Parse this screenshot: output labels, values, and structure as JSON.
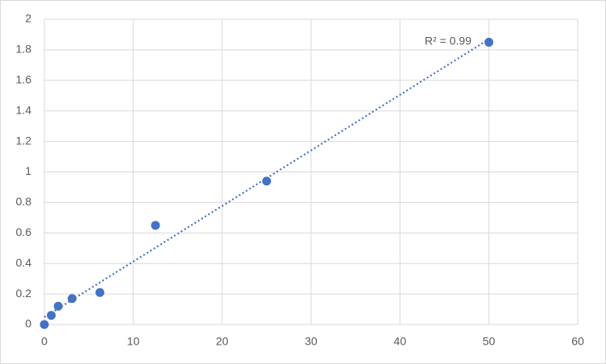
{
  "chart_data": {
    "type": "scatter",
    "x": [
      0,
      0.78,
      1.56,
      3.125,
      6.25,
      12.5,
      25,
      50
    ],
    "values": [
      0,
      0.06,
      0.12,
      0.17,
      0.21,
      0.65,
      0.94,
      1.85
    ],
    "color": "#4472c4",
    "trendline": "linear",
    "annotation": "R² = 0.99",
    "xlim": [
      0,
      60
    ],
    "xticks": [
      0,
      10,
      20,
      30,
      40,
      50,
      60
    ],
    "ylim": [
      0,
      2
    ],
    "yticks": [
      0,
      0.2,
      0.4,
      0.6,
      0.8,
      1,
      1.2,
      1.4,
      1.6,
      1.8,
      2
    ],
    "grid": true
  }
}
